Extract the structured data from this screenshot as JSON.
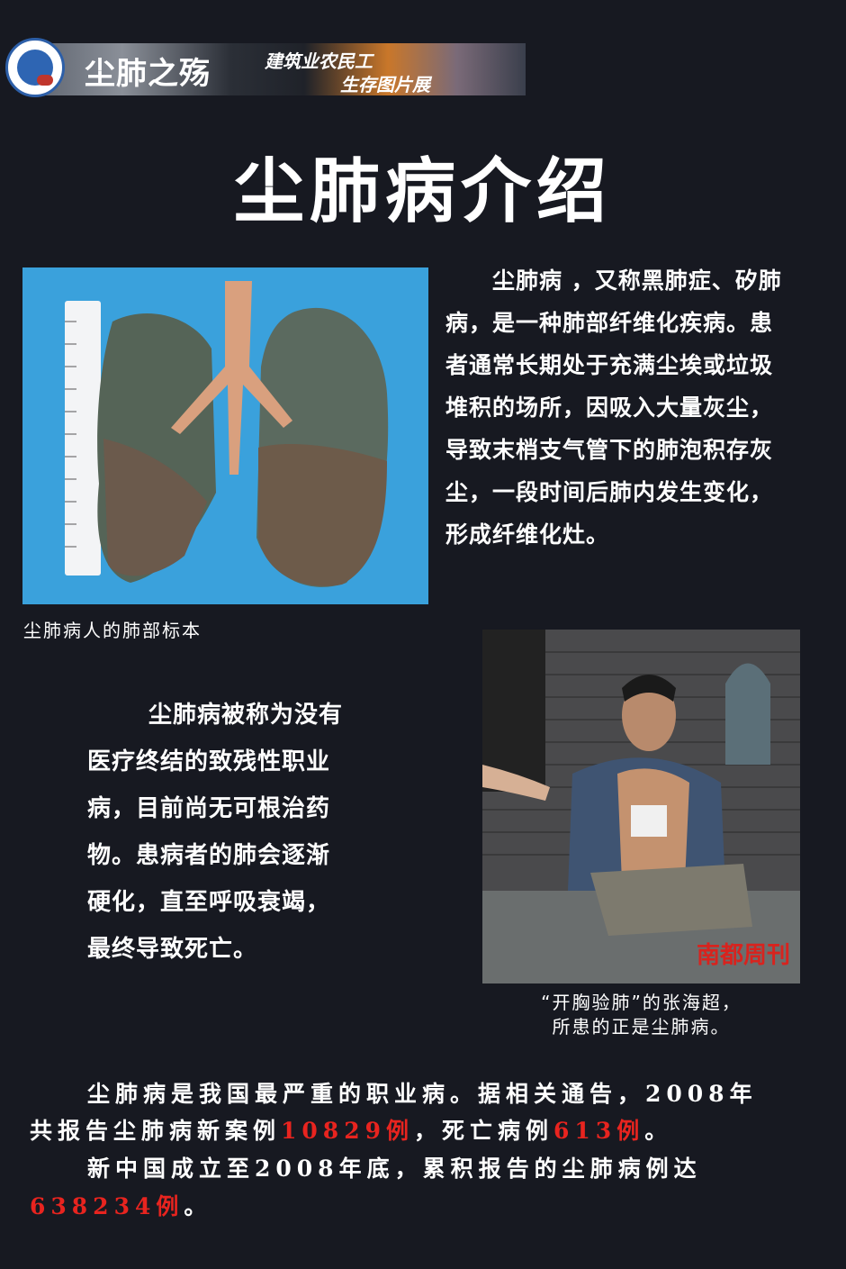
{
  "banner": {
    "title": "尘肺之殇",
    "subtitle_top": "建筑业农民工",
    "subtitle_bottom": "生存图片展"
  },
  "page_title": "尘肺病介绍",
  "intro_paragraph": [
    "尘肺病 ，又称黑肺症、矽肺",
    "病，是一种肺部纤维化疾病。患",
    "者通常长期处于充满尘埃或垃圾",
    "堆积的场所，因吸入大量灰尘，",
    "导致末梢支气管下的肺泡积存灰",
    "尘，一段时间后肺内发生变化，",
    "形成纤维化灶。"
  ],
  "lung_caption": "尘肺病人的肺部标本",
  "disability_paragraph": [
    "尘肺病被称为没有",
    "医疗终结的致残性职业",
    "病，目前尚无可根治药",
    "物。患病者的肺会逐渐",
    "硬化，直至呼吸衰竭，",
    "最终导致死亡。"
  ],
  "photo_watermark": "南都周刊",
  "photo_caption": [
    "“开胸验肺”的张海超，",
    "所患的正是尘肺病。"
  ],
  "stats": {
    "line1": "尘肺病是我国最严重的职业病。据相关通告，2008年",
    "line2_a": "共报告尘肺病新案例",
    "new_cases": "10829例",
    "line2_b": "，死亡病例",
    "deaths": "613例",
    "line2_c": "。",
    "line3": "新中国成立至2008年底，累积报告的尘肺病例达",
    "total_cases": "638234例",
    "line4_end": "。"
  },
  "colors": {
    "background": "#171921",
    "highlight": "#e8241f"
  }
}
